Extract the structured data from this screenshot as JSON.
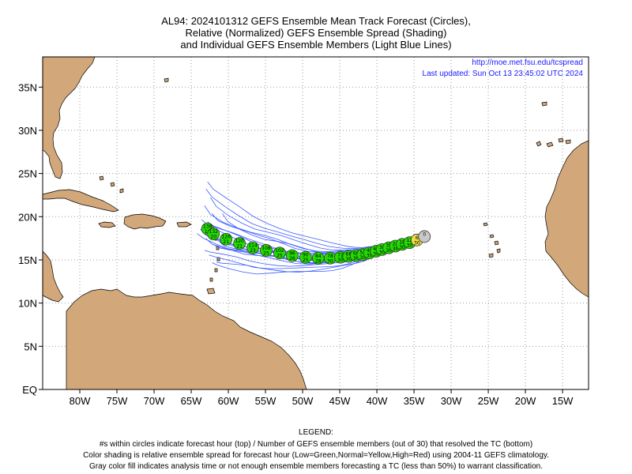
{
  "title": {
    "line1": "AL94: 2024101312 GEFS Ensemble Mean Track Forecast (Circles),",
    "line2": "Relative (Normalized) GEFS Ensemble Spread (Shading)",
    "line3": "and Individual GEFS Ensemble Members (Light Blue Lines)"
  },
  "credit": {
    "url": "http://moe.met.fsu.edu/tcspread",
    "updated": "Last updated: Sun Oct 13 23:45:02 UTC 2024"
  },
  "map": {
    "lon_range": [
      -85,
      -11.5
    ],
    "lat_range": [
      0,
      38.5
    ],
    "lon_ticks": [
      {
        "value": -80,
        "label": "80W"
      },
      {
        "value": -75,
        "label": "75W"
      },
      {
        "value": -70,
        "label": "70W"
      },
      {
        "value": -65,
        "label": "65W"
      },
      {
        "value": -60,
        "label": "60W"
      },
      {
        "value": -55,
        "label": "55W"
      },
      {
        "value": -50,
        "label": "50W"
      },
      {
        "value": -45,
        "label": "45W"
      },
      {
        "value": -40,
        "label": "40W"
      },
      {
        "value": -35,
        "label": "35W"
      },
      {
        "value": -30,
        "label": "30W"
      },
      {
        "value": -25,
        "label": "25W"
      },
      {
        "value": -20,
        "label": "20W"
      },
      {
        "value": -15,
        "label": "15W"
      }
    ],
    "lat_ticks": [
      {
        "value": 0,
        "label": "EQ"
      },
      {
        "value": 5,
        "label": "5N"
      },
      {
        "value": 10,
        "label": "10N"
      },
      {
        "value": 15,
        "label": "15N"
      },
      {
        "value": 20,
        "label": "20N"
      },
      {
        "value": 25,
        "label": "25N"
      },
      {
        "value": 30,
        "label": "30N"
      },
      {
        "value": 35,
        "label": "35N"
      }
    ],
    "grid": "dotted",
    "colors": {
      "land": "#d2a87a",
      "land_edge": "#000000",
      "member_line": "#3a5cff",
      "low_spread": "#22dd00",
      "normal_spread": "#eedd44",
      "analysis": "#c8c8c8"
    }
  },
  "track": [
    {
      "lon": -33.6,
      "lat": 17.7,
      "top": "0",
      "bottom": "",
      "fill": "analysis"
    },
    {
      "lon": -34.6,
      "lat": 17.3,
      "top": "6",
      "bottom": "30",
      "fill": "normal_spread"
    },
    {
      "lon": -35.6,
      "lat": 17.0,
      "top": "12",
      "bottom": "30",
      "fill": "low_spread"
    },
    {
      "lon": -36.6,
      "lat": 16.8,
      "top": "18",
      "bottom": "30",
      "fill": "low_spread"
    },
    {
      "lon": -37.5,
      "lat": 16.6,
      "top": "24",
      "bottom": "30",
      "fill": "low_spread"
    },
    {
      "lon": -38.4,
      "lat": 16.4,
      "top": "30",
      "bottom": "30",
      "fill": "low_spread"
    },
    {
      "lon": -39.3,
      "lat": 16.2,
      "top": "36",
      "bottom": "30",
      "fill": "low_spread"
    },
    {
      "lon": -40.1,
      "lat": 16.0,
      "top": "42",
      "bottom": "30",
      "fill": "low_spread"
    },
    {
      "lon": -41.0,
      "lat": 15.8,
      "top": "48",
      "bottom": "30",
      "fill": "low_spread"
    },
    {
      "lon": -41.9,
      "lat": 15.6,
      "top": "54",
      "bottom": "30",
      "fill": "low_spread"
    },
    {
      "lon": -42.8,
      "lat": 15.5,
      "top": "60",
      "bottom": "30",
      "fill": "low_spread"
    },
    {
      "lon": -43.8,
      "lat": 15.4,
      "top": "66",
      "bottom": "30",
      "fill": "low_spread"
    },
    {
      "lon": -44.9,
      "lat": 15.3,
      "top": "72",
      "bottom": "30",
      "fill": "low_spread"
    },
    {
      "lon": -46.3,
      "lat": 15.2,
      "top": "78",
      "bottom": "30",
      "fill": "low_spread"
    },
    {
      "lon": -47.9,
      "lat": 15.2,
      "top": "84",
      "bottom": "28",
      "fill": "low_spread"
    },
    {
      "lon": -49.6,
      "lat": 15.3,
      "top": "90",
      "bottom": "25",
      "fill": "low_spread"
    },
    {
      "lon": -51.4,
      "lat": 15.5,
      "top": "96",
      "bottom": "26",
      "fill": "low_spread"
    },
    {
      "lon": -53.1,
      "lat": 15.8,
      "top": "102",
      "bottom": "25",
      "fill": "low_spread"
    },
    {
      "lon": -54.9,
      "lat": 16.1,
      "top": "108",
      "bottom": "25",
      "fill": "low_spread"
    },
    {
      "lon": -56.7,
      "lat": 16.4,
      "top": "114",
      "bottom": "23",
      "fill": "low_spread"
    },
    {
      "lon": -58.5,
      "lat": 16.9,
      "top": "120",
      "bottom": "21",
      "fill": "low_spread"
    },
    {
      "lon": -60.3,
      "lat": 17.4,
      "top": "126",
      "bottom": "21",
      "fill": "low_spread"
    },
    {
      "lon": -62.0,
      "lat": 18.0,
      "top": "132",
      "bottom": "20",
      "fill": "low_spread"
    },
    {
      "lon": -62.8,
      "lat": 18.6,
      "top": "138",
      "bottom": "16",
      "fill": "low_spread"
    }
  ],
  "legend": {
    "heading": "LEGEND:",
    "line1": "#s within circles indicate forecast hour (top) / Number of GEFS ensemble members (out of 30) that resolved the TC (bottom)",
    "line2": "Color shading is relative ensemble spread for forecast hour (Low=Green,Normal=Yellow,High=Red) using 2004-11 GEFS climatology.",
    "line3": "Gray color fill indicates analysis time or not enough ensemble members forecasting a TC (less than 50%) to warrant classification."
  }
}
